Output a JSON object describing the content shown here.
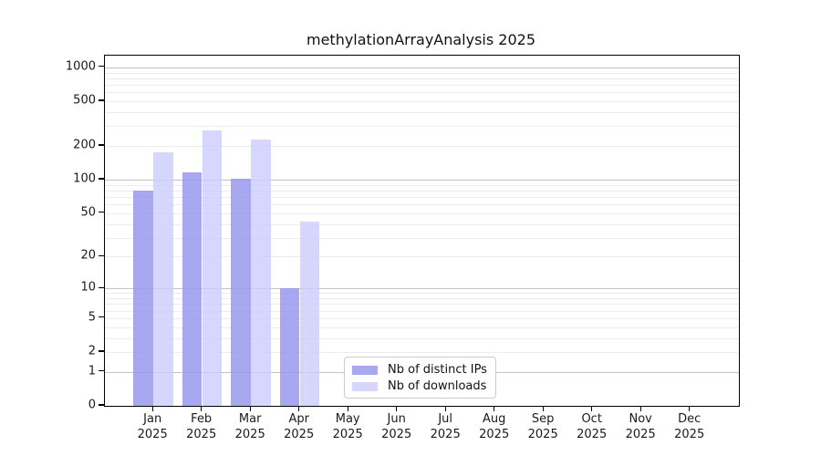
{
  "title": "methylationArrayAnalysis 2025",
  "chart_data": {
    "type": "bar",
    "title": "methylationArrayAnalysis 2025",
    "categories": [
      "Jan",
      "Feb",
      "Mar",
      "Apr",
      "May",
      "Jun",
      "Jul",
      "Aug",
      "Sep",
      "Oct",
      "Nov",
      "Dec"
    ],
    "year_label": "2025",
    "series": [
      {
        "name": "Nb of distinct IPs",
        "color": "#9999ee",
        "opacity": 0.85,
        "values": [
          80,
          116,
          103,
          10,
          0,
          0,
          0,
          0,
          0,
          0,
          0,
          0
        ]
      },
      {
        "name": "Nb of downloads",
        "color": "#ccccff",
        "opacity": 0.8,
        "values": [
          177,
          276,
          229,
          42,
          0,
          0,
          0,
          0,
          0,
          0,
          0,
          0
        ]
      }
    ],
    "xlabel": "",
    "ylabel": "",
    "yscale": "log10(value+1)",
    "ylim": [
      0,
      1270
    ],
    "yticks": [
      0,
      1,
      2,
      5,
      10,
      20,
      50,
      100,
      200,
      500,
      1000
    ],
    "grid": {
      "on": true,
      "major": [
        1,
        10,
        100,
        1000
      ],
      "minor": [
        2,
        3,
        4,
        5,
        6,
        7,
        8,
        9,
        20,
        30,
        40,
        50,
        60,
        70,
        80,
        90,
        200,
        300,
        400,
        500,
        600,
        700,
        800,
        900
      ]
    },
    "legend_position": "lower-center-inside",
    "colors": {
      "spine": "#000000",
      "grid_major": "#c3c3c3",
      "grid_minor": "#ececec",
      "legend_border": "#cccccc",
      "background": "#ffffff"
    }
  }
}
